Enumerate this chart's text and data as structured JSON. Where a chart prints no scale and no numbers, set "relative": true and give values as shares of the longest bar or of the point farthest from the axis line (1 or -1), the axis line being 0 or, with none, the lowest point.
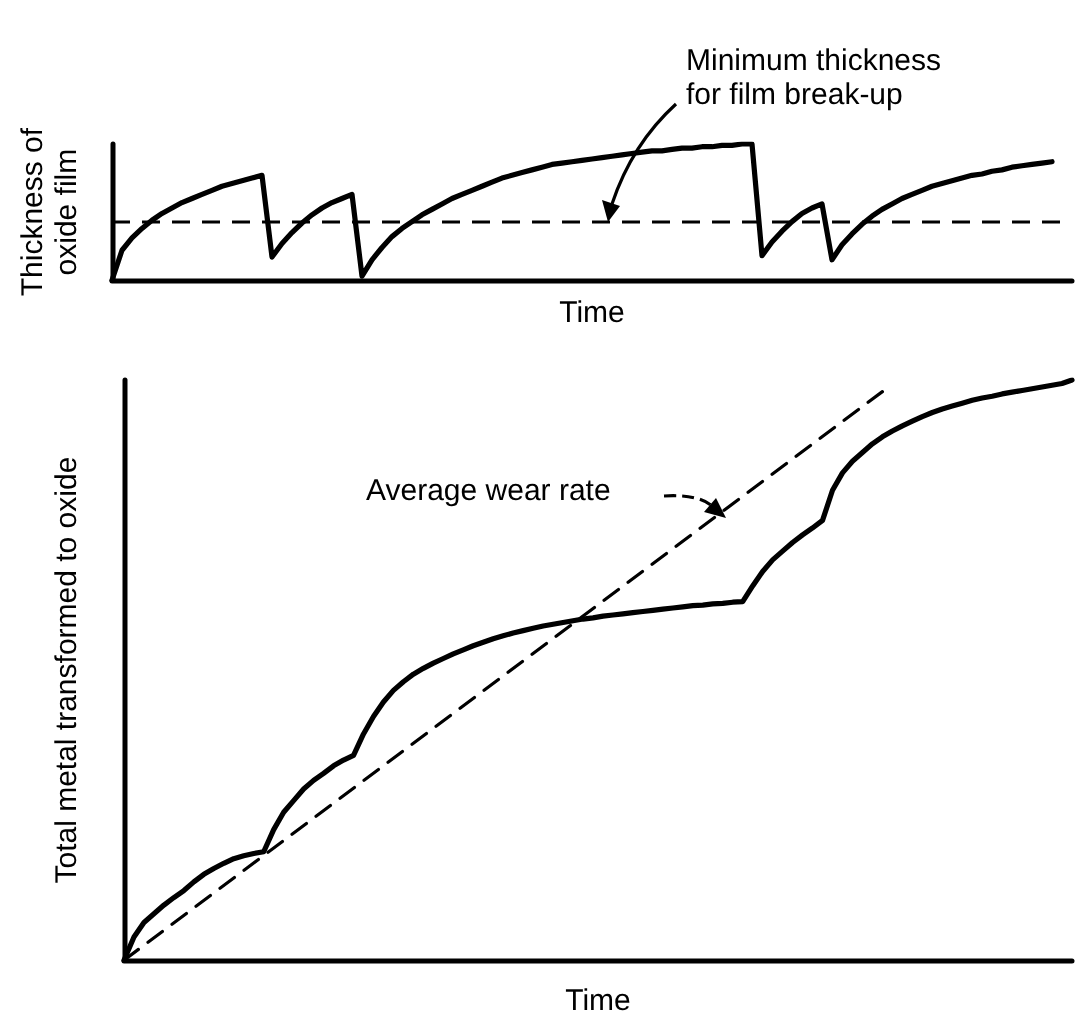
{
  "chart_data": [
    {
      "type": "line",
      "relative": true,
      "marker": "none",
      "xlabel": "Time",
      "ylabel": "Thickness of\noxide film",
      "categories": [
        null,
        null,
        null,
        null,
        null,
        null,
        null,
        null,
        null,
        null,
        null,
        null,
        null,
        null,
        null,
        null,
        null,
        null,
        null,
        null,
        null,
        null,
        null,
        null,
        null,
        null,
        null,
        null,
        null,
        null,
        null,
        null,
        null,
        null,
        null,
        null,
        null,
        null,
        null,
        null,
        null,
        null,
        null,
        null,
        null,
        null,
        null,
        null,
        null,
        null,
        null,
        null,
        null,
        null,
        null,
        null,
        null,
        null,
        null,
        null,
        null,
        null,
        null,
        null,
        null,
        null,
        null,
        null,
        null,
        null,
        null,
        null,
        null,
        null,
        null,
        null,
        null,
        null,
        null,
        null,
        null,
        null,
        null,
        null,
        null,
        null,
        null,
        null,
        null,
        null,
        null,
        null,
        null,
        null,
        null,
        null,
        null
      ],
      "series": [
        {
          "color": "#000000",
          "values": [
            0,
            0.22,
            0.31,
            0.38,
            0.44,
            0.49,
            0.53,
            0.57,
            0.6,
            0.63,
            0.66,
            0.69,
            0.71,
            0.73,
            0.75,
            0.77,
            0.17,
            0.27,
            0.35,
            0.42,
            0.48,
            0.53,
            0.57,
            0.6,
            0.63,
            0.03,
            0.15,
            0.24,
            0.32,
            0.38,
            0.43,
            0.48,
            0.52,
            0.56,
            0.6,
            0.63,
            0.66,
            0.69,
            0.72,
            0.75,
            0.77,
            0.79,
            0.81,
            0.83,
            0.85,
            0.86,
            0.87,
            0.88,
            0.89,
            0.9,
            0.91,
            0.92,
            0.93,
            0.94,
            0.95,
            0.95,
            0.96,
            0.97,
            0.97,
            0.98,
            0.98,
            0.99,
            0.99,
            1,
            1,
            0.18,
            0.28,
            0.36,
            0.43,
            0.49,
            0.53,
            0.56,
            0.15,
            0.26,
            0.34,
            0.41,
            0.47,
            0.52,
            0.56,
            0.6,
            0.63,
            0.66,
            0.69,
            0.71,
            0.73,
            0.75,
            0.77,
            0.78,
            0.8,
            0.81,
            0.83,
            0.84,
            0.85,
            0.86,
            0.87,
            null,
            null
          ]
        }
      ],
      "ref_lines": [
        {
          "axis": "y",
          "value": 0.43,
          "label": "Minimum thickness\nfor film break-up",
          "color": "#000000",
          "line_style": "dashed"
        }
      ]
    },
    {
      "type": "line",
      "relative": true,
      "marker": "none",
      "xlabel": "Time",
      "ylabel": "Total metal transformed to oxide",
      "categories": [
        null,
        null,
        null,
        null,
        null,
        null,
        null,
        null,
        null,
        null,
        null,
        null,
        null,
        null,
        null,
        null,
        null,
        null,
        null,
        null,
        null,
        null,
        null,
        null,
        null,
        null,
        null,
        null,
        null,
        null,
        null,
        null,
        null,
        null,
        null,
        null,
        null,
        null,
        null,
        null,
        null,
        null,
        null,
        null,
        null,
        null,
        null,
        null,
        null,
        null,
        null,
        null,
        null,
        null,
        null,
        null,
        null,
        null,
        null,
        null,
        null,
        null,
        null,
        null,
        null,
        null,
        null,
        null,
        null,
        null,
        null,
        null,
        null,
        null,
        null,
        null,
        null,
        null,
        null,
        null,
        null,
        null,
        null,
        null,
        null,
        null,
        null,
        null,
        null,
        null,
        null,
        null,
        null,
        null,
        null,
        null
      ],
      "series": [
        {
          "color": "#000000",
          "values": [
            0,
            0.04,
            0.065,
            0.08,
            0.095,
            0.108,
            0.12,
            0.135,
            0.148,
            0.158,
            0.167,
            0.175,
            0.18,
            0.184,
            0.187,
            0.225,
            0.255,
            0.275,
            0.295,
            0.31,
            0.322,
            0.335,
            0.345,
            0.353,
            0.39,
            0.42,
            0.445,
            0.465,
            0.48,
            0.493,
            0.503,
            0.512,
            0.52,
            0.528,
            0.535,
            0.542,
            0.548,
            0.554,
            0.559,
            0.564,
            0.568,
            0.572,
            0.576,
            0.579,
            0.582,
            0.585,
            0.588,
            0.59,
            0.593,
            0.595,
            0.597,
            0.599,
            0.601,
            0.603,
            0.605,
            0.607,
            0.609,
            0.611,
            0.612,
            0.614,
            0.615,
            0.617,
            0.618,
            0.645,
            0.67,
            0.69,
            0.705,
            0.72,
            0.733,
            0.745,
            0.758,
            0.81,
            0.84,
            0.86,
            0.875,
            0.89,
            0.902,
            0.912,
            0.921,
            0.929,
            0.937,
            0.944,
            0.95,
            0.955,
            0.96,
            0.965,
            0.969,
            0.972,
            0.976,
            0.979,
            0.982,
            0.985,
            0.988,
            0.991,
            0.994,
            1
          ]
        },
        {
          "color": "#000000",
          "line_style": "dashed",
          "values": [
            0,
            null,
            null,
            null,
            null,
            null,
            null,
            null,
            null,
            null,
            null,
            null,
            null,
            null,
            null,
            null,
            null,
            null,
            null,
            null,
            null,
            null,
            null,
            null,
            null,
            null,
            null,
            null,
            null,
            null,
            null,
            null,
            null,
            null,
            null,
            null,
            null,
            null,
            null,
            null,
            null,
            null,
            null,
            null,
            null,
            null,
            null,
            null,
            null,
            null,
            null,
            null,
            null,
            null,
            null,
            null,
            null,
            null,
            null,
            null,
            null,
            null,
            null,
            null,
            null,
            null,
            null,
            null,
            null,
            null,
            null,
            null,
            null,
            null,
            null,
            null,
            0.98,
            null,
            null,
            null,
            null,
            null,
            null,
            null,
            null,
            null,
            null,
            null,
            null,
            null,
            null,
            null,
            null,
            null,
            null,
            null
          ]
        }
      ],
      "annotations": [
        "Average wear rate"
      ]
    }
  ]
}
